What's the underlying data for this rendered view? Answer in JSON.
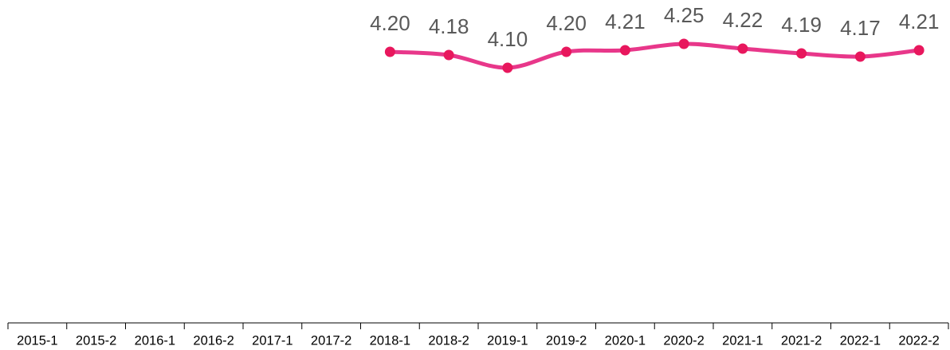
{
  "chart_data": {
    "type": "line",
    "categories": [
      "2015-1",
      "2015-2",
      "2016-1",
      "2016-2",
      "2017-1",
      "2017-2",
      "2018-1",
      "2018-2",
      "2019-1",
      "2019-2",
      "2020-1",
      "2020-2",
      "2021-1",
      "2021-2",
      "2022-1",
      "2022-2"
    ],
    "series": [
      {
        "color": "#e8378a",
        "marker_color": "#e8175d",
        "values": [
          null,
          null,
          null,
          null,
          null,
          null,
          4.2,
          4.18,
          4.1,
          4.2,
          4.21,
          4.25,
          4.22,
          4.19,
          4.17,
          4.21
        ],
        "value_labels": [
          null,
          null,
          null,
          null,
          null,
          null,
          "4.20",
          "4.18",
          "4.10",
          "4.20",
          "4.21",
          "4.25",
          "4.22",
          "4.19",
          "4.17",
          "4.21"
        ]
      }
    ],
    "ylim": [
      2.5,
      4.5
    ]
  }
}
